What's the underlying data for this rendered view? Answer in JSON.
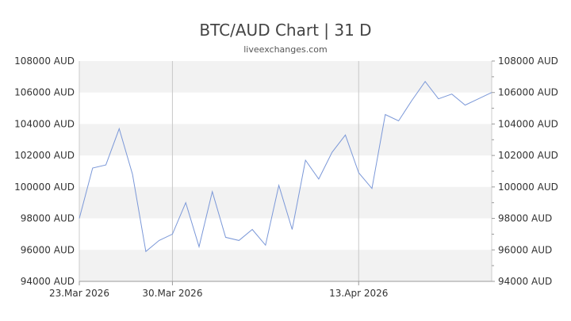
{
  "header": {
    "title": "BTC/AUD Chart | 31 D",
    "source": "liveexchanges.com"
  },
  "chart_data": {
    "type": "line",
    "title": "BTC/AUD Chart | 31 D",
    "xlabel": "",
    "ylabel": "",
    "ylim": [
      94000,
      108000
    ],
    "y_ticks": [
      94000,
      96000,
      98000,
      100000,
      102000,
      104000,
      106000,
      108000
    ],
    "y_tick_labels": [
      "94000 AUD",
      "96000 AUD",
      "98000 AUD",
      "100000 AUD",
      "102000 AUD",
      "104000 AUD",
      "106000 AUD",
      "108000 AUD"
    ],
    "x_tick_labels": [
      {
        "label": "23.Mar 2026",
        "index": 0
      },
      {
        "label": "30.Mar 2026",
        "index": 7
      },
      {
        "label": "13.Apr 2026",
        "index": 21
      }
    ],
    "vertical_gridlines_at_index": [
      7,
      21
    ],
    "banded_background": true,
    "line_color": "#7b98d8",
    "series": [
      {
        "values": [
          98000,
          101200,
          101400,
          103700,
          100800,
          95900,
          96600,
          97000,
          99000,
          96200,
          99700,
          96800,
          96600,
          97300,
          96300,
          100100,
          97300,
          101700,
          100500,
          102200,
          103300,
          100900,
          99900,
          104600,
          104200,
          105500,
          106700,
          105600,
          105900,
          105200,
          105600,
          106000
        ]
      }
    ]
  }
}
